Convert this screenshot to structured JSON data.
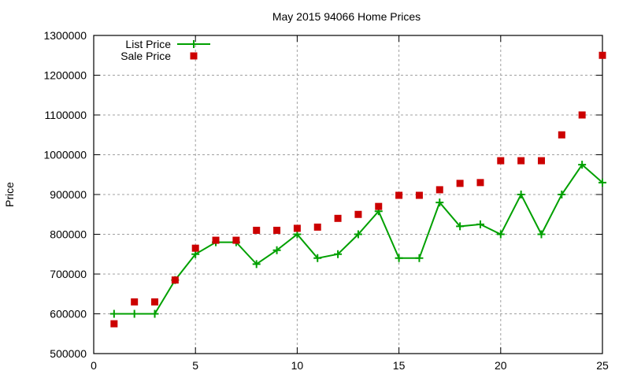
{
  "chart_data": {
    "type": "line",
    "title": "May 2015 94066 Home Prices",
    "xlabel": "",
    "ylabel": "Price",
    "xlim": [
      0,
      25
    ],
    "ylim": [
      500000,
      1300000
    ],
    "xticks": [
      0,
      5,
      10,
      15,
      20,
      25
    ],
    "yticks": [
      500000,
      600000,
      700000,
      800000,
      900000,
      1000000,
      1100000,
      1200000,
      1300000
    ],
    "grid": true,
    "legend_position": "top-left",
    "x": [
      1,
      2,
      3,
      4,
      5,
      6,
      7,
      8,
      9,
      10,
      11,
      12,
      13,
      14,
      15,
      16,
      17,
      18,
      19,
      20,
      21,
      22,
      23,
      24,
      25
    ],
    "series": [
      {
        "name": "List Price",
        "style": "linespoints",
        "marker": "plus",
        "color": "#00a000",
        "values": [
          600000,
          600000,
          600000,
          685000,
          750000,
          780000,
          780000,
          725000,
          760000,
          800000,
          740000,
          750000,
          800000,
          858000,
          740000,
          740000,
          880000,
          820000,
          825000,
          800000,
          900000,
          800000,
          900000,
          975000,
          930000
        ]
      },
      {
        "name": "Sale Price",
        "style": "points",
        "marker": "square",
        "color": "#cc0000",
        "values": [
          575000,
          630000,
          630000,
          685000,
          765000,
          785000,
          785000,
          810000,
          810000,
          815000,
          818000,
          840000,
          850000,
          870000,
          898000,
          898000,
          912000,
          928000,
          930000,
          985000,
          985000,
          985000,
          1050000,
          1100000,
          1250000
        ]
      }
    ]
  }
}
